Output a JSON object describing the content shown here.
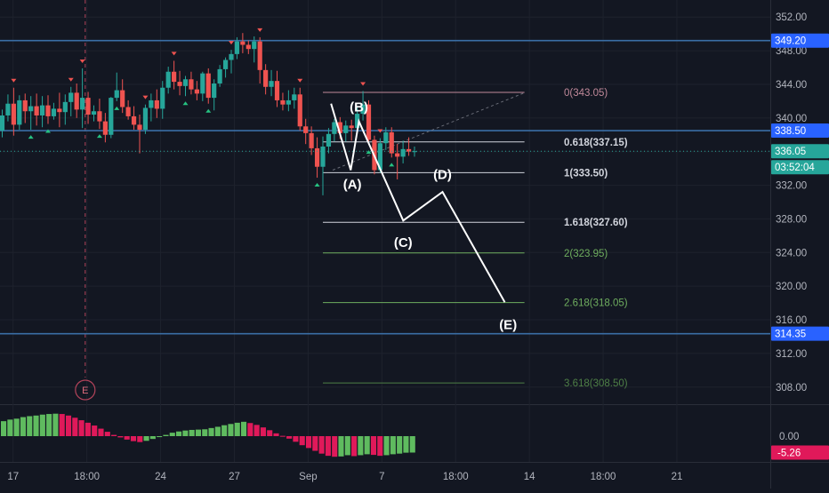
{
  "chart_data": {
    "type": "candlestick",
    "title": "",
    "xlabel": "",
    "ylabel": "",
    "price_axis": {
      "ticks": [
        352.0,
        348.0,
        344.0,
        340.0,
        336.0,
        332.0,
        328.0,
        324.0,
        320.0,
        316.0,
        312.0,
        308.0
      ],
      "tick_labels": [
        "352.00",
        "348.00",
        "344.00",
        "340.00",
        "336.00",
        "332.00",
        "328.00",
        "324.00",
        "320.00",
        "316.00",
        "312.00",
        "308.00"
      ],
      "range": [
        306.5,
        353.5
      ]
    },
    "time_axis": {
      "labels": [
        "17",
        "18:00",
        "24",
        "27",
        "Sep",
        "7",
        "18:00",
        "14",
        "18:00",
        "21"
      ],
      "positions": [
        0.8,
        5.3,
        9.8,
        14.3,
        18.8,
        23.3,
        27.8,
        32.3,
        36.8,
        41.3
      ],
      "range": [
        0,
        47
      ]
    },
    "horizontal_lines": [
      {
        "price": 349.2,
        "label": "349.20",
        "color": "#3a6ea5"
      },
      {
        "price": 338.5,
        "label": "338.50",
        "color": "#3a6ea5"
      },
      {
        "price": 314.35,
        "label": "314.35",
        "color": "#3a6ea5"
      }
    ],
    "current_price": {
      "value": 336.05,
      "label": "336.05",
      "countdown": "03:52:04",
      "color": "#26a69a"
    },
    "fibonacci": {
      "start_x": 19.7,
      "end_x": 32.0,
      "levels": [
        {
          "text": "0(343.05)",
          "price": 343.05,
          "color": "#c0899a"
        },
        {
          "text": "0.618(337.15)",
          "price": 337.15,
          "color": "#d1d4dc"
        },
        {
          "text": "1(333.50)",
          "price": 333.5,
          "color": "#d1d4dc"
        },
        {
          "text": "1.618(327.60)",
          "price": 327.6,
          "color": "#d1d4dc"
        },
        {
          "text": "2(323.95)",
          "price": 323.95,
          "color": "#6fae5f"
        },
        {
          "text": "2.618(318.05)",
          "price": 318.05,
          "color": "#6fae5f"
        },
        {
          "text": "3.618(308.50)",
          "price": 308.5,
          "color": "#4e7f46"
        }
      ],
      "trend_line": {
        "x1": 20.3,
        "p1": 333.8,
        "x2": 32.0,
        "p2": 343.0
      }
    },
    "wave_path": [
      {
        "x": 20.2,
        "price": 341.7
      },
      {
        "x": 21.4,
        "price": 333.8
      },
      {
        "x": 21.9,
        "price": 339.6
      },
      {
        "x": 24.6,
        "price": 327.8
      },
      {
        "x": 27.0,
        "price": 331.2
      },
      {
        "x": 30.8,
        "price": 318.1
      }
    ],
    "wave_labels": [
      {
        "text": "(A)",
        "x": 21.5,
        "price": 332.1
      },
      {
        "text": "(B)",
        "x": 21.9,
        "price": 341.3
      },
      {
        "text": "(C)",
        "x": 24.6,
        "price": 325.2
      },
      {
        "text": "(D)",
        "x": 27.0,
        "price": 333.3
      },
      {
        "text": "(E)",
        "x": 31.0,
        "price": 315.4
      }
    ],
    "event_marker": {
      "x": 5.2,
      "text": "E"
    },
    "candles": [
      [
        338.5,
        341.0,
        337.7,
        340.3
      ],
      [
        340.3,
        342.8,
        339.6,
        341.7
      ],
      [
        341.7,
        343.6,
        337.9,
        339.2
      ],
      [
        339.2,
        342.7,
        338.6,
        342.1
      ],
      [
        342.1,
        342.9,
        339.4,
        340.8
      ],
      [
        340.8,
        342.6,
        338.6,
        341.4
      ],
      [
        341.4,
        342.9,
        339.1,
        340.3
      ],
      [
        340.3,
        342.6,
        338.9,
        341.5
      ],
      [
        341.5,
        342.7,
        339.3,
        340.2
      ],
      [
        340.2,
        341.8,
        339.8,
        341.1
      ],
      [
        341.1,
        343.0,
        338.9,
        340.7
      ],
      [
        340.7,
        342.8,
        339.2,
        341.9
      ],
      [
        341.9,
        343.7,
        340.2,
        343.0
      ],
      [
        343.0,
        344.1,
        340.0,
        341.0
      ],
      [
        341.0,
        345.9,
        338.8,
        342.4
      ],
      [
        342.4,
        343.1,
        339.3,
        340.4
      ],
      [
        340.4,
        341.5,
        339.6,
        340.8
      ],
      [
        340.8,
        342.3,
        338.7,
        339.6
      ],
      [
        339.6,
        340.6,
        337.1,
        338.0
      ],
      [
        338.0,
        342.5,
        337.6,
        342.4
      ],
      [
        342.4,
        345.4,
        342.0,
        343.3
      ],
      [
        343.3,
        344.6,
        340.6,
        341.3
      ],
      [
        341.3,
        342.1,
        339.8,
        340.2
      ],
      [
        340.2,
        341.4,
        338.6,
        339.2
      ],
      [
        339.2,
        340.4,
        335.8,
        338.6
      ],
      [
        338.6,
        341.6,
        338.1,
        341.2
      ],
      [
        341.2,
        342.9,
        339.6,
        342.1
      ],
      [
        342.1,
        343.4,
        340.0,
        341.1
      ],
      [
        341.1,
        344.4,
        339.9,
        343.6
      ],
      [
        343.6,
        346.1,
        342.9,
        345.5
      ],
      [
        345.5,
        346.8,
        343.4,
        344.3
      ],
      [
        344.3,
        345.6,
        342.7,
        343.8
      ],
      [
        343.8,
        345.0,
        342.6,
        344.6
      ],
      [
        344.6,
        345.5,
        342.8,
        343.4
      ],
      [
        343.4,
        344.4,
        342.1,
        342.9
      ],
      [
        342.9,
        345.5,
        342.0,
        345.3
      ],
      [
        345.3,
        345.9,
        341.7,
        342.4
      ],
      [
        342.4,
        344.6,
        340.9,
        344.1
      ],
      [
        344.1,
        346.3,
        343.7,
        345.8
      ],
      [
        345.8,
        347.2,
        344.8,
        346.9
      ],
      [
        346.9,
        348.1,
        345.3,
        347.6
      ],
      [
        347.6,
        349.6,
        347.0,
        349.1
      ],
      [
        349.1,
        350.1,
        347.7,
        348.7
      ],
      [
        348.7,
        349.2,
        347.6,
        348.2
      ],
      [
        348.2,
        349.7,
        346.6,
        349.1
      ],
      [
        349.1,
        349.6,
        344.1,
        345.7
      ],
      [
        345.7,
        346.4,
        342.8,
        343.7
      ],
      [
        343.7,
        345.7,
        342.6,
        344.4
      ],
      [
        344.4,
        345.6,
        341.3,
        342.1
      ],
      [
        342.1,
        343.0,
        340.9,
        341.6
      ],
      [
        341.6,
        343.3,
        340.8,
        342.1
      ],
      [
        342.1,
        343.6,
        341.1,
        342.8
      ],
      [
        342.8,
        343.6,
        338.5,
        339.0
      ],
      [
        339.0,
        339.9,
        336.9,
        338.2
      ],
      [
        338.2,
        339.0,
        335.6,
        336.4
      ],
      [
        336.4,
        337.7,
        332.9,
        334.2
      ],
      [
        334.2,
        337.8,
        330.8,
        336.6
      ],
      [
        336.6,
        338.8,
        335.8,
        338.1
      ],
      [
        338.1,
        339.9,
        337.2,
        339.5
      ],
      [
        339.5,
        340.1,
        337.5,
        338.2
      ],
      [
        338.2,
        339.7,
        337.2,
        339.1
      ],
      [
        339.1,
        339.8,
        337.3,
        338.8
      ],
      [
        338.8,
        341.3,
        338.2,
        340.5
      ],
      [
        340.5,
        343.2,
        339.7,
        341.6
      ],
      [
        341.6,
        342.1,
        336.8,
        337.4
      ],
      [
        337.4,
        337.9,
        333.3,
        333.8
      ],
      [
        333.8,
        337.6,
        333.5,
        337.0
      ],
      [
        337.0,
        338.9,
        336.2,
        338.3
      ],
      [
        338.3,
        338.9,
        335.3,
        335.8
      ],
      [
        335.8,
        336.9,
        332.7,
        335.4
      ],
      [
        335.4,
        337.3,
        334.6,
        336.3
      ],
      [
        336.3,
        337.7,
        335.5,
        336.0
      ],
      [
        336.0,
        336.6,
        335.4,
        336.05
      ]
    ],
    "oscillator": {
      "zero_label": "0.00",
      "last_label": "-5.26",
      "last_value": -5.26,
      "bar_colors": {
        "up": "#5fbb5f",
        "down": "#e0195a"
      },
      "values": [
        4.8,
        5.3,
        5.6,
        6.1,
        6.4,
        6.6,
        6.9,
        7.1,
        7.2,
        7.1,
        6.6,
        5.9,
        5.1,
        4.3,
        3.4,
        2.4,
        1.4,
        0.4,
        -0.4,
        -1.1,
        -1.6,
        -1.9,
        -1.5,
        -0.9,
        -0.3,
        0.4,
        1.1,
        1.5,
        1.8,
        2.0,
        2.1,
        2.2,
        2.6,
        3.0,
        3.5,
        3.9,
        4.3,
        4.6,
        4.2,
        3.6,
        2.8,
        1.9,
        0.9,
        0.1,
        -0.8,
        -1.8,
        -2.9,
        -3.8,
        -4.7,
        -5.6,
        -6.3,
        -6.6,
        -6.5,
        -6.1,
        -6.4,
        -6.1,
        -5.8,
        -6.0,
        -6.3,
        -6.1,
        -5.8,
        -5.6,
        -5.3,
        -5.26
      ],
      "range": [
        -6.9,
        7.4
      ]
    }
  }
}
